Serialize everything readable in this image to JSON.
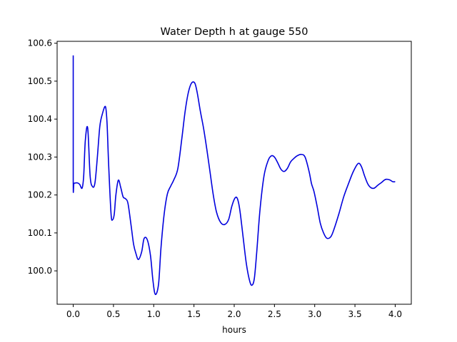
{
  "chart_data": {
    "type": "line",
    "title": "Water Depth h at gauge 550",
    "xlabel": "hours",
    "ylabel": "",
    "xlim": [
      -0.2,
      4.2
    ],
    "ylim": [
      99.912,
      100.605
    ],
    "xticks": [
      0.0,
      0.5,
      1.0,
      1.5,
      2.0,
      2.5,
      3.0,
      3.5,
      4.0
    ],
    "xtick_labels": [
      "0.0",
      "0.5",
      "1.0",
      "1.5",
      "2.0",
      "2.5",
      "3.0",
      "3.5",
      "4.0"
    ],
    "yticks": [
      100.0,
      100.1,
      100.2,
      100.3,
      100.4,
      100.5,
      100.6
    ],
    "ytick_labels": [
      "100.0",
      "100.1",
      "100.2",
      "100.3",
      "100.4",
      "100.5",
      "100.6"
    ],
    "grid": false,
    "legend": "none",
    "series": [
      {
        "color": "#0000dd",
        "x": [
          0.0,
          0.0,
          0.01,
          0.05,
          0.08,
          0.11,
          0.13,
          0.15,
          0.18,
          0.21,
          0.24,
          0.27,
          0.3,
          0.33,
          0.36,
          0.4,
          0.42,
          0.44,
          0.47,
          0.49,
          0.51,
          0.53,
          0.56,
          0.59,
          0.62,
          0.65,
          0.68,
          0.72,
          0.75,
          0.78,
          0.81,
          0.85,
          0.88,
          0.92,
          0.96,
          0.99,
          1.02,
          1.06,
          1.09,
          1.13,
          1.17,
          1.21,
          1.25,
          1.3,
          1.35,
          1.39,
          1.43,
          1.47,
          1.51,
          1.54,
          1.58,
          1.62,
          1.66,
          1.7,
          1.74,
          1.78,
          1.83,
          1.88,
          1.93,
          1.97,
          2.01,
          2.04,
          2.07,
          2.11,
          2.15,
          2.19,
          2.22,
          2.25,
          2.28,
          2.32,
          2.37,
          2.42,
          2.46,
          2.5,
          2.54,
          2.58,
          2.62,
          2.66,
          2.7,
          2.74,
          2.78,
          2.83,
          2.88,
          2.93,
          2.96,
          2.99,
          3.03,
          3.07,
          3.11,
          3.15,
          3.2,
          3.24,
          3.3,
          3.36,
          3.42,
          3.48,
          3.54,
          3.58,
          3.62,
          3.66,
          3.7,
          3.74,
          3.78,
          3.83,
          3.88,
          3.93,
          3.97,
          4.0
        ],
        "y": [
          100.568,
          100.232,
          100.231,
          100.232,
          100.228,
          100.218,
          100.25,
          100.343,
          100.376,
          100.25,
          100.222,
          100.232,
          100.3,
          100.38,
          100.412,
          100.433,
          100.39,
          100.28,
          100.15,
          100.135,
          100.15,
          100.2,
          100.239,
          100.22,
          100.195,
          100.19,
          100.178,
          100.118,
          100.07,
          100.045,
          100.03,
          100.05,
          100.085,
          100.082,
          100.04,
          99.975,
          99.938,
          99.965,
          100.06,
          100.15,
          100.203,
          100.223,
          100.24,
          100.27,
          100.35,
          100.42,
          100.47,
          100.495,
          100.495,
          100.47,
          100.42,
          100.375,
          100.32,
          100.26,
          100.2,
          100.155,
          100.128,
          100.122,
          100.135,
          100.17,
          100.192,
          100.19,
          100.16,
          100.09,
          100.02,
          99.975,
          99.962,
          99.98,
          100.05,
          100.16,
          100.25,
          100.29,
          100.303,
          100.3,
          100.285,
          100.268,
          100.262,
          100.27,
          100.287,
          100.296,
          100.303,
          100.307,
          100.3,
          100.262,
          100.23,
          100.21,
          100.17,
          100.125,
          100.1,
          100.086,
          100.09,
          100.11,
          100.15,
          100.195,
          100.23,
          100.262,
          100.283,
          100.275,
          100.25,
          100.229,
          100.219,
          100.218,
          100.225,
          100.233,
          100.241,
          100.24,
          100.235,
          100.235
        ]
      }
    ]
  }
}
